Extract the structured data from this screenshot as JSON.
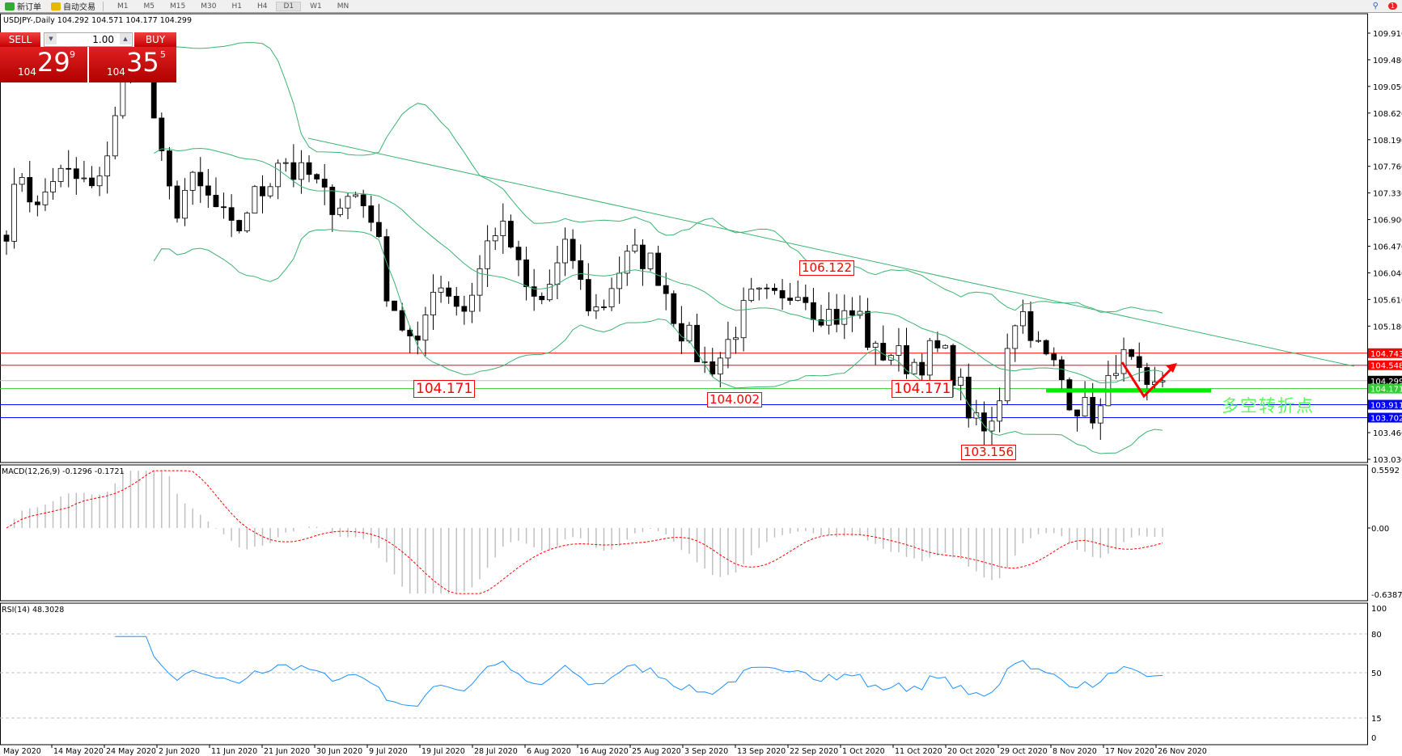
{
  "toolbar": {
    "new_order": "新订单",
    "auto_trading": "自动交易",
    "timeframes": [
      "M1",
      "M5",
      "M15",
      "M30",
      "H1",
      "H4",
      "D1",
      "W1",
      "MN"
    ],
    "active_timeframe": "D1",
    "notification_count": "1"
  },
  "chart": {
    "title": "USDJPY-,Daily  104.292 104.571 104.177 104.299",
    "price_axis": [
      "109.910",
      "109.480",
      "109.050",
      "108.620",
      "108.190",
      "107.760",
      "107.330",
      "106.900",
      "106.470",
      "106.040",
      "105.610",
      "105.180",
      "103.460",
      "103.030"
    ],
    "price_levels": [
      {
        "label": "104.743",
        "color": "#ff0000"
      },
      {
        "label": "104.548",
        "color": "#ff0000"
      },
      {
        "label": "104.299",
        "color": "#000000",
        "line": "#c0c0c0"
      },
      {
        "label": "104.171",
        "color": "#32cd32"
      },
      {
        "label": "103.911",
        "color": "#0000ff"
      },
      {
        "label": "103.702",
        "color": "#0000ff"
      }
    ],
    "annotations": [
      "104.171",
      "104.002",
      "104.171",
      "106.122",
      "103.156"
    ],
    "note": "多空转折点",
    "dates": [
      "May 2020",
      "14 May 2020",
      "24 May 2020",
      "2 Jun 2020",
      "11 Jun 2020",
      "21 Jun 2020",
      "30 Jun 2020",
      "9 Jul 2020",
      "19 Jul 2020",
      "28 Jul 2020",
      "6 Aug 2020",
      "16 Aug 2020",
      "25 Aug 2020",
      "3 Sep 2020",
      "13 Sep 2020",
      "22 Sep 2020",
      "1 Oct 2020",
      "11 Oct 2020",
      "20 Oct 2020",
      "29 Oct 2020",
      "8 Nov 2020",
      "17 Nov 2020",
      "26 Nov 2020"
    ]
  },
  "trade_panel": {
    "sell": "SELL",
    "buy": "BUY",
    "lot": "1.00",
    "bid_prefix": "104",
    "bid_main": "29",
    "bid_sup": "9",
    "ask_prefix": "104",
    "ask_main": "35",
    "ask_sup": "5"
  },
  "macd": {
    "title": "MACD(12,26,9) -0.1296 -0.1721",
    "axis": [
      "0.5592",
      "0.00",
      "-0.6387"
    ]
  },
  "rsi": {
    "title": "RSI(14) 48.3028",
    "axis": [
      "100",
      "80",
      "50",
      "15",
      "0"
    ]
  },
  "chart_data": {
    "type": "candlestick",
    "symbol": "USDJPY",
    "timeframe": "Daily",
    "close_path": [
      106.8,
      107.7,
      107.0,
      107.6,
      107.6,
      107.5,
      107.3,
      108.5,
      109.5,
      109.8,
      108.0,
      107.0,
      107.5,
      107.3,
      107.0,
      106.6,
      107.2,
      107.4,
      108.0,
      107.6,
      107.6,
      107.2,
      107.2,
      107.3,
      107.0,
      105.8,
      105.2,
      104.7,
      105.9,
      105.8,
      105.4,
      106.0,
      106.8,
      106.6,
      105.8,
      105.5,
      106.0,
      106.5,
      105.6,
      105.4,
      106.0,
      106.3,
      106.3,
      106.0,
      105.3,
      104.9,
      104.5,
      104.7,
      105.2,
      105.6,
      105.6,
      105.5,
      105.9,
      105.5,
      105.4,
      105.3,
      105.4,
      104.7,
      104.8,
      104.6,
      104.6,
      104.8,
      104.6,
      104.0,
      103.4,
      103.6,
      105.3,
      105.4,
      104.7,
      104.5,
      104.0,
      103.8,
      103.8,
      104.7,
      104.5,
      104.0,
      104.3
    ],
    "indicators": [
      "Bollinger Bands",
      "MACD(12,26,9)",
      "RSI(14)"
    ],
    "colors": {
      "bands": "#3cb371",
      "trendline": "#3cb371",
      "macd_hist": "#c0c0c0",
      "macd_signal": "#ff0000",
      "rsi": "#1e90ff",
      "arrow": "#ff0000",
      "pivot_line": "#00ee00"
    }
  }
}
